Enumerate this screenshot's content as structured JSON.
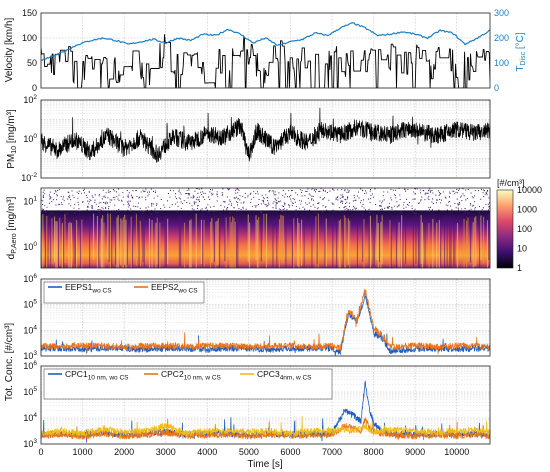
{
  "chart_data": [
    {
      "type": "line",
      "panel": "velocity",
      "ylabel": "Velocity [km/h]",
      "ylabel2_main": "T",
      "ylabel2_sub": "Disc",
      "ylabel2_unit": " [°C]",
      "xlim": [
        0,
        10800
      ],
      "ylim": [
        0,
        150
      ],
      "y_ticks": [
        0,
        50,
        100,
        150
      ],
      "y2lim": [
        0,
        300
      ],
      "y2_ticks": [
        0,
        100,
        200,
        300
      ],
      "grid": true,
      "series": [
        {
          "color": "#000000",
          "x": [
            0,
            300,
            600,
            900,
            1200,
            1500,
            1800,
            2100,
            2400,
            2700,
            2900,
            3000,
            3100,
            3400,
            3700,
            4000,
            4300,
            4500,
            4700,
            4800,
            5000,
            5200,
            5300,
            5500,
            5800,
            6100,
            6400,
            6700,
            7000,
            7300,
            7600,
            7900,
            8200,
            8500,
            8800,
            9100,
            9400,
            9700,
            10000,
            10300,
            10600,
            10800
          ],
          "y": [
            55,
            40,
            60,
            30,
            50,
            45,
            35,
            55,
            40,
            30,
            70,
            125,
            60,
            45,
            65,
            30,
            60,
            40,
            100,
            90,
            70,
            40,
            20,
            50,
            70,
            40,
            65,
            45,
            70,
            40,
            65,
            60,
            45,
            70,
            50,
            60,
            40,
            65,
            50,
            45,
            50,
            40
          ]
        },
        {
          "color": "#1b7fc4",
          "x": [
            0,
            300,
            600,
            900,
            1200,
            1500,
            1800,
            2100,
            2400,
            2700,
            3000,
            3300,
            3600,
            3900,
            4200,
            4500,
            4800,
            5100,
            5400,
            5700,
            6000,
            6300,
            6600,
            6900,
            7200,
            7500,
            7800,
            8100,
            8400,
            8700,
            9000,
            9300,
            9600,
            9900,
            10200,
            10500,
            10800
          ],
          "y2": [
            110,
            130,
            150,
            175,
            190,
            200,
            190,
            175,
            185,
            195,
            180,
            200,
            190,
            215,
            210,
            235,
            215,
            180,
            200,
            170,
            185,
            195,
            220,
            210,
            240,
            260,
            240,
            210,
            215,
            225,
            215,
            200,
            230,
            220,
            175,
            200,
            230
          ]
        }
      ]
    },
    {
      "type": "line",
      "panel": "pm10",
      "ylabel_main": "PM",
      "ylabel_sub": "10",
      "ylabel_unit": " [mg/m³]",
      "yscale": "log",
      "ylim_exp": [
        -2,
        2
      ],
      "y_ticks_exp": [
        -2,
        0,
        2
      ],
      "xlim": [
        0,
        10800
      ],
      "grid": true,
      "series": [
        {
          "color": "#000000",
          "x": [
            0,
            400,
            800,
            1200,
            1600,
            2000,
            2400,
            2800,
            3000,
            3200,
            3600,
            4000,
            4400,
            4800,
            5000,
            5200,
            5600,
            6000,
            6400,
            6800,
            7200,
            7600,
            8000,
            8400,
            8800,
            9200,
            9600,
            10000,
            10400,
            10800
          ],
          "log10_y": [
            -0.1,
            -0.6,
            0.0,
            -0.7,
            0.2,
            -0.5,
            0.1,
            -0.8,
            -0.3,
            0.1,
            -0.2,
            0.3,
            0.1,
            0.7,
            -0.9,
            0.4,
            -0.4,
            0.3,
            -0.2,
            0.5,
            0.2,
            0.6,
            0.3,
            0.2,
            0.5,
            0.3,
            0.2,
            0.5,
            0.3,
            0.4
          ]
        }
      ]
    },
    {
      "type": "heatmap",
      "panel": "size-distribution",
      "ylabel_main": "d",
      "ylabel_sub": "P,Aero",
      "ylabel_unit": " [mg/m³]",
      "yscale": "log",
      "y_ticks_exp": [
        0,
        1
      ],
      "xlim": [
        0,
        10800
      ],
      "colorbar_label": "[#/cm³]",
      "colorbar_ticks": [
        "1",
        "10",
        "100",
        "1000",
        "10000"
      ],
      "colorbar_colors": [
        "#000004",
        "#3b0f70",
        "#8c2981",
        "#de4968",
        "#fe9f6d",
        "#fcfdbf"
      ]
    },
    {
      "type": "line",
      "panel": "eeps",
      "yscale": "log",
      "ylim_exp": [
        3,
        6
      ],
      "y_ticks_exp": [
        3,
        4,
        5,
        6
      ],
      "xlim": [
        0,
        10800
      ],
      "grid": true,
      "legend": "top-left",
      "series": [
        {
          "name_main": "EEPS1",
          "name_sub": "wo CS",
          "color": "#1f5fbf",
          "x": [
            0,
            500,
            1000,
            1500,
            2000,
            2500,
            3000,
            3500,
            4000,
            4500,
            5000,
            5500,
            6000,
            6500,
            7000,
            7200,
            7400,
            7600,
            7800,
            8000,
            8200,
            8400,
            8800,
            9200,
            9600,
            10000,
            10400,
            10800
          ],
          "log10_y": [
            3.3,
            3.3,
            3.25,
            3.3,
            3.3,
            3.25,
            3.3,
            3.3,
            3.25,
            3.3,
            3.3,
            3.25,
            3.3,
            3.3,
            3.3,
            3.15,
            4.7,
            4.3,
            5.4,
            3.9,
            3.7,
            3.2,
            3.25,
            3.3,
            3.3,
            3.25,
            3.3,
            3.3
          ]
        },
        {
          "name_main": "EEPS2",
          "name_sub": "wo CS",
          "color": "#e8731a",
          "x": [
            0,
            500,
            1000,
            1500,
            2000,
            2500,
            3000,
            3500,
            4000,
            4500,
            5000,
            5500,
            6000,
            6500,
            7000,
            7200,
            7400,
            7600,
            7800,
            8000,
            8200,
            8400,
            8800,
            9200,
            9600,
            10000,
            10400,
            10800
          ],
          "log10_y": [
            3.4,
            3.35,
            3.4,
            3.4,
            3.35,
            3.4,
            3.4,
            3.35,
            3.4,
            3.4,
            3.35,
            3.4,
            3.4,
            3.35,
            3.4,
            3.3,
            4.8,
            4.4,
            5.6,
            4.1,
            3.8,
            3.35,
            3.4,
            3.4,
            3.35,
            3.4,
            3.4,
            3.35
          ]
        }
      ]
    },
    {
      "type": "line",
      "panel": "cpc",
      "yscale": "log",
      "ylim_exp": [
        3,
        6
      ],
      "y_ticks_exp": [
        3,
        4,
        5,
        6
      ],
      "xlim": [
        0,
        10800
      ],
      "x_ticks": [
        0,
        1000,
        2000,
        3000,
        4000,
        5000,
        6000,
        7000,
        8000,
        9000,
        10000
      ],
      "xlabel": "Time [s]",
      "shared_ylabel": "Tot. Conc. [#/cm³]",
      "grid": true,
      "legend": "top-left",
      "series": [
        {
          "name_main": "CPC1",
          "name_sub": "10 nm, wo CS",
          "color": "#1f5fbf",
          "x": [
            0,
            500,
            1000,
            1500,
            2000,
            2500,
            3000,
            3500,
            4000,
            4500,
            5000,
            5500,
            6000,
            6500,
            7000,
            7300,
            7500,
            7700,
            7800,
            7900,
            8000,
            8200,
            8500,
            9000,
            9500,
            10000,
            10500,
            10800
          ],
          "log10_y": [
            3.35,
            3.4,
            3.35,
            3.45,
            3.35,
            3.4,
            3.5,
            3.35,
            3.4,
            3.4,
            3.35,
            3.4,
            3.35,
            3.4,
            3.4,
            4.3,
            4.1,
            3.9,
            5.4,
            4.3,
            3.8,
            3.5,
            3.4,
            3.35,
            3.4,
            3.35,
            3.4,
            3.35
          ]
        },
        {
          "name_main": "CPC2",
          "name_sub": "10 nm, w CS",
          "color": "#e8731a",
          "x": [
            0,
            500,
            1000,
            1500,
            2000,
            2500,
            3000,
            3500,
            4000,
            4500,
            5000,
            5500,
            6000,
            6500,
            7000,
            7300,
            7500,
            7700,
            7800,
            7900,
            8000,
            8200,
            8500,
            9000,
            9500,
            10000,
            10500,
            10800
          ],
          "log10_y": [
            3.3,
            3.35,
            3.3,
            3.4,
            3.3,
            3.35,
            3.45,
            3.3,
            3.35,
            3.35,
            3.3,
            3.35,
            3.3,
            3.35,
            3.35,
            3.7,
            3.6,
            3.5,
            4.0,
            3.6,
            3.5,
            3.4,
            3.35,
            3.3,
            3.35,
            3.3,
            3.35,
            3.3
          ]
        },
        {
          "name_main": "CPC3",
          "name_sub": "4nm, w CS",
          "color": "#f2bb14",
          "x": [
            0,
            500,
            1000,
            1500,
            2000,
            2500,
            3000,
            3500,
            4000,
            4500,
            5000,
            5500,
            6000,
            6500,
            7000,
            7300,
            7500,
            7700,
            7800,
            7900,
            8000,
            8200,
            8500,
            9000,
            9500,
            10000,
            10500,
            10800
          ],
          "log10_y": [
            3.4,
            3.5,
            3.4,
            3.6,
            3.45,
            3.5,
            3.7,
            3.4,
            3.5,
            3.5,
            3.45,
            3.5,
            3.4,
            3.5,
            3.5,
            3.55,
            3.5,
            3.6,
            3.7,
            3.5,
            3.45,
            3.5,
            3.55,
            3.5,
            3.45,
            3.5,
            3.55,
            3.45
          ]
        }
      ]
    }
  ]
}
